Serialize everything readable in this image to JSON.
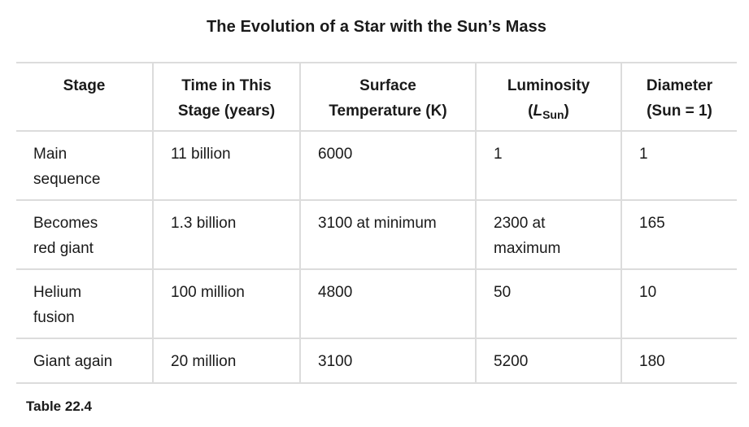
{
  "title": "The Evolution of a Star with the Sun’s Mass",
  "table": {
    "headers": [
      {
        "line1": "Stage",
        "line2": ""
      },
      {
        "line1": "Time in This",
        "line2": "Stage (years)"
      },
      {
        "line1": "Surface",
        "line2": "Temperature (K)"
      },
      {
        "line1": "Luminosity",
        "line2_open": "(",
        "line2_sym": "L",
        "line2_sub": "Sun",
        "line2_close": ")"
      },
      {
        "line1": "Diameter",
        "line2": "(Sun = 1)"
      }
    ],
    "rows": [
      {
        "stage_l1": "Main",
        "stage_l2": "sequence",
        "time": "11 billion",
        "temp": "6000",
        "lum_l1": "1",
        "lum_l2": "",
        "diam": "1"
      },
      {
        "stage_l1": "Becomes",
        "stage_l2": "red giant",
        "time": "1.3 billion",
        "temp": "3100 at minimum",
        "lum_l1": "2300 at",
        "lum_l2": "maximum",
        "diam": "165"
      },
      {
        "stage_l1": "Helium",
        "stage_l2": "fusion",
        "time": "100 million",
        "temp": "4800",
        "lum_l1": "50",
        "lum_l2": "",
        "diam": "10"
      },
      {
        "stage_l1": "Giant again",
        "stage_l2": "",
        "time": "20 million",
        "temp": "3100",
        "lum_l1": "5200",
        "lum_l2": "",
        "diam": "180"
      }
    ]
  },
  "caption": "Table  22.4"
}
